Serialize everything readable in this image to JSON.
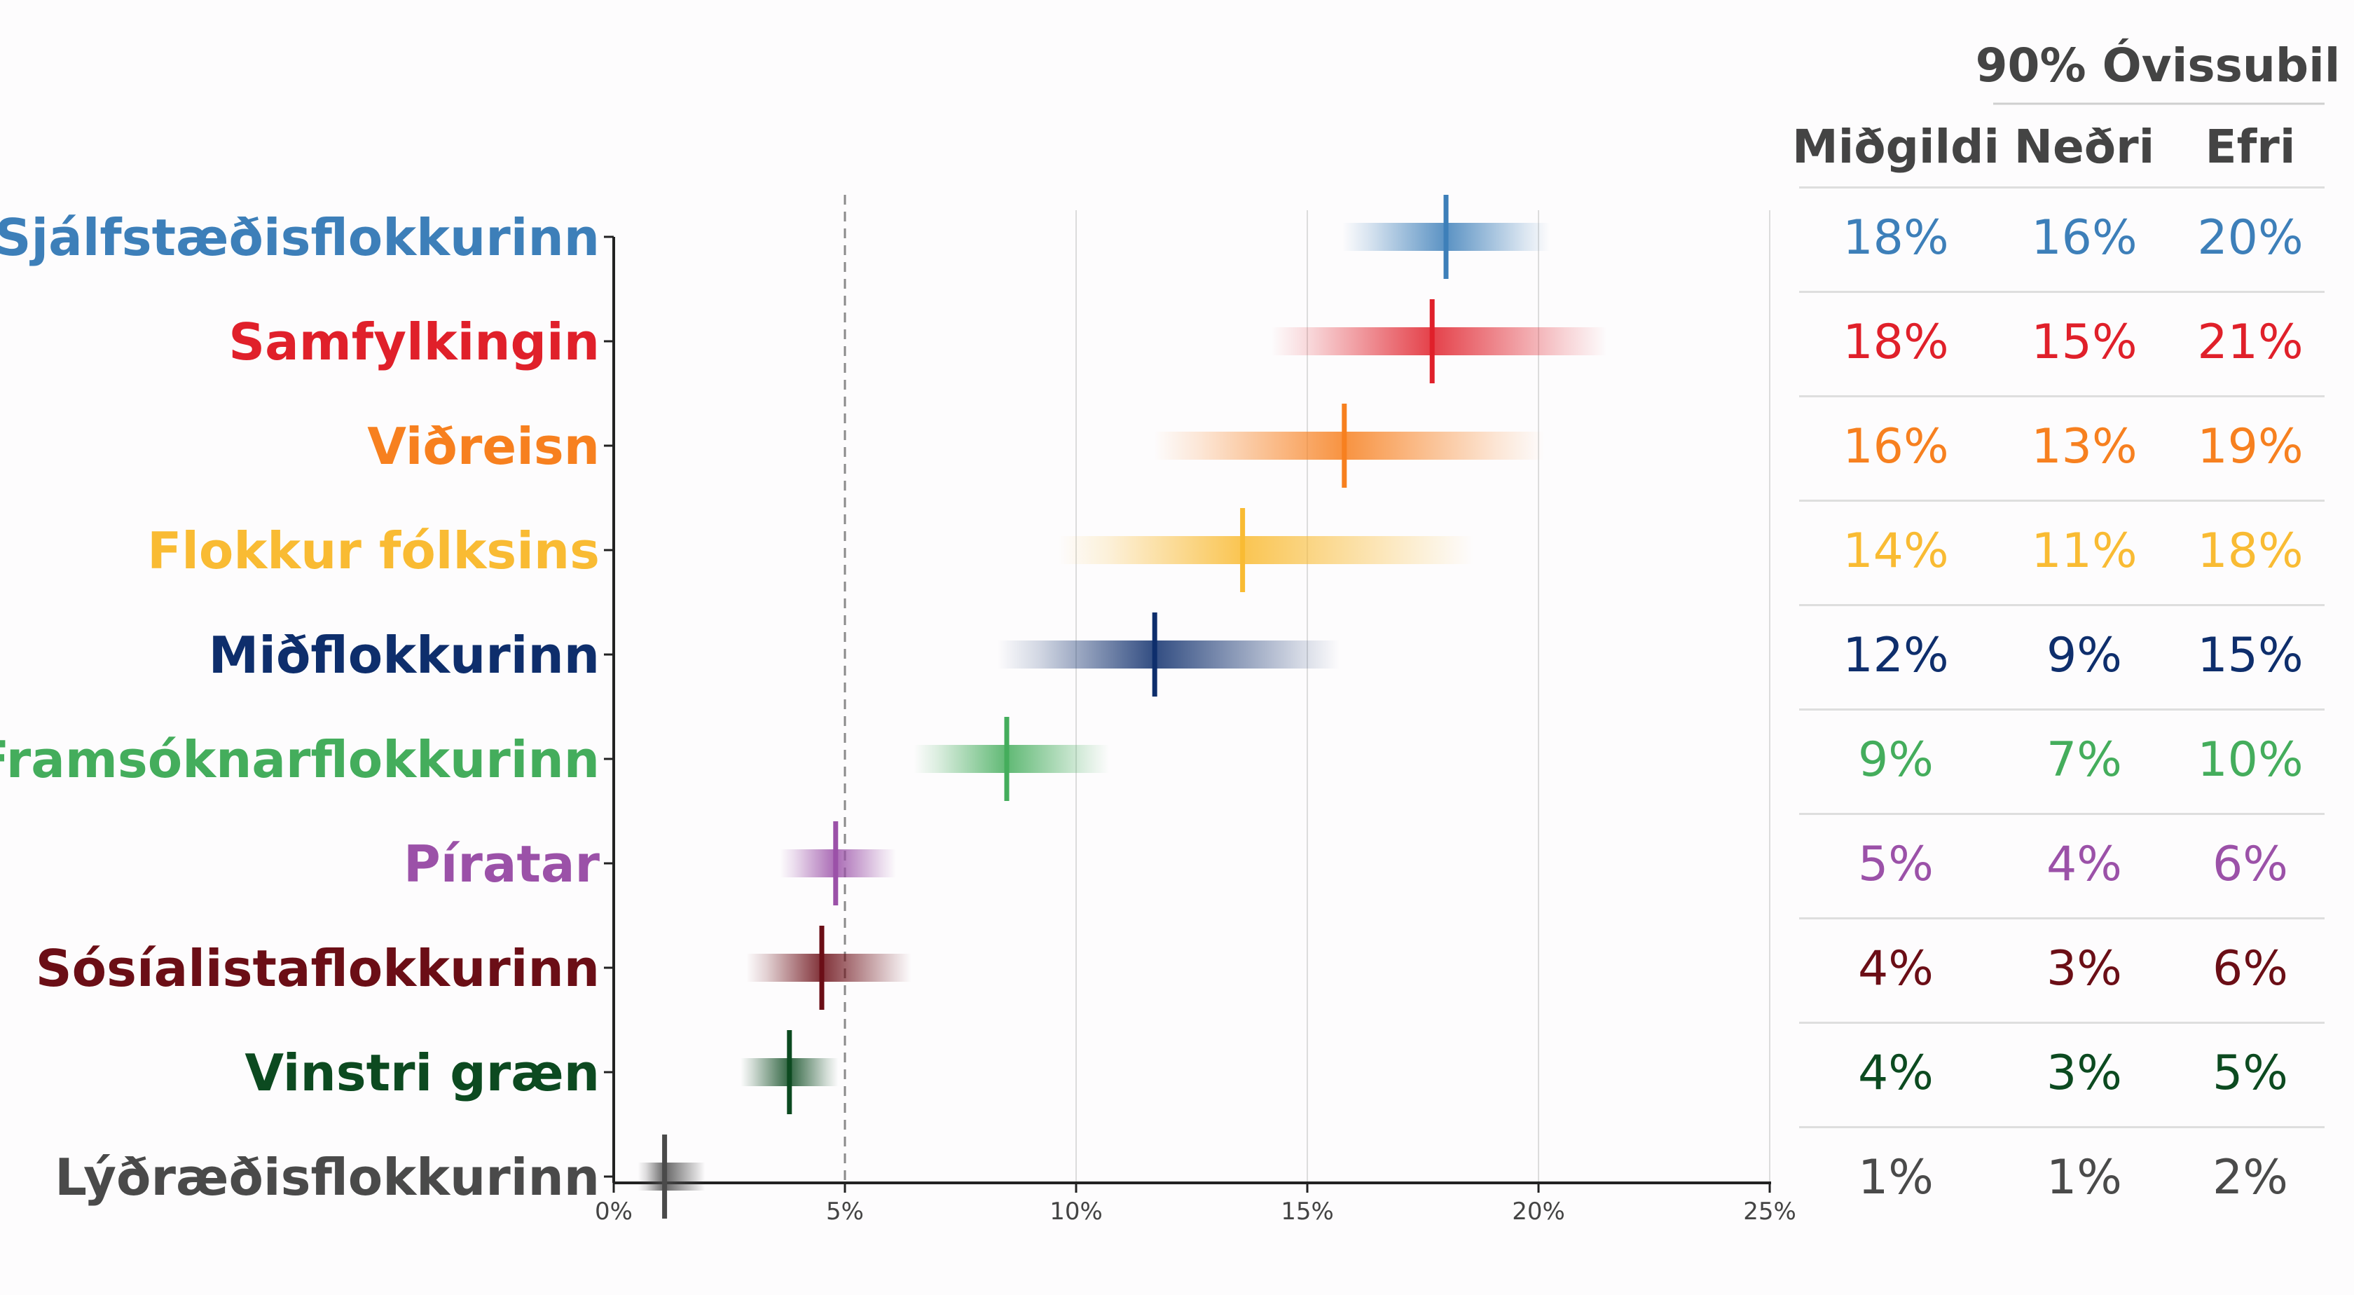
{
  "chart_data": {
    "type": "interval",
    "xlim": [
      0,
      25
    ],
    "x_ticks": [
      0,
      5,
      10,
      15,
      20,
      25
    ],
    "x_tick_labels": [
      "0%",
      "5%",
      "10%",
      "15%",
      "20%",
      "25%"
    ],
    "reference_line": 5,
    "grid": "vertical",
    "table": {
      "group_header": "90% Óvissubil",
      "col_median": "Miðgildi",
      "col_lower": "Neðri",
      "col_upper": "Efri"
    },
    "parties": [
      {
        "name": "Sjálfstæðisflokkurinn",
        "color": "#3d7fb9",
        "median": 18.0,
        "lower": 16.3,
        "upper": 19.7,
        "median_label": "18%",
        "lower_label": "16%",
        "upper_label": "20%"
      },
      {
        "name": "Samfylkingin",
        "color": "#e0202a",
        "median": 17.7,
        "lower": 15.1,
        "upper": 20.6,
        "median_label": "18%",
        "lower_label": "15%",
        "upper_label": "21%"
      },
      {
        "name": "Viðreisn",
        "color": "#f7801f",
        "median": 15.8,
        "lower": 12.7,
        "upper": 19.1,
        "median_label": "16%",
        "lower_label": "13%",
        "upper_label": "19%"
      },
      {
        "name": "Flokkur fólksins",
        "color": "#f9bb33",
        "median": 13.6,
        "lower": 10.7,
        "upper": 17.5,
        "median_label": "14%",
        "lower_label": "11%",
        "upper_label": "18%"
      },
      {
        "name": "Miðflokkurinn",
        "color": "#0e2e6c",
        "median": 11.7,
        "lower": 9.2,
        "upper": 14.8,
        "median_label": "12%",
        "lower_label": "9%",
        "upper_label": "15%"
      },
      {
        "name": "Framsóknarflokkurinn",
        "color": "#44ad5c",
        "median": 8.5,
        "lower": 7.0,
        "upper": 10.2,
        "median_label": "9%",
        "lower_label": "7%",
        "upper_label": "10%"
      },
      {
        "name": "Píratar",
        "color": "#9b51a8",
        "median": 4.8,
        "lower": 3.9,
        "upper": 5.8,
        "median_label": "5%",
        "lower_label": "4%",
        "upper_label": "6%"
      },
      {
        "name": "Sósíalistaflokkurinn",
        "color": "#6b0e16",
        "median": 4.5,
        "lower": 3.3,
        "upper": 6.0,
        "median_label": "4%",
        "lower_label": "3%",
        "upper_label": "6%"
      },
      {
        "name": "Vinstri græn",
        "color": "#0c4a20",
        "median": 3.8,
        "lower": 3.0,
        "upper": 4.6,
        "median_label": "4%",
        "lower_label": "3%",
        "upper_label": "5%"
      },
      {
        "name": "Lýðræðisflokkurinn",
        "color": "#4a4a4a",
        "median": 1.1,
        "lower": 0.7,
        "upper": 1.8,
        "median_label": "1%",
        "lower_label": "1%",
        "upper_label": "2%"
      }
    ]
  }
}
